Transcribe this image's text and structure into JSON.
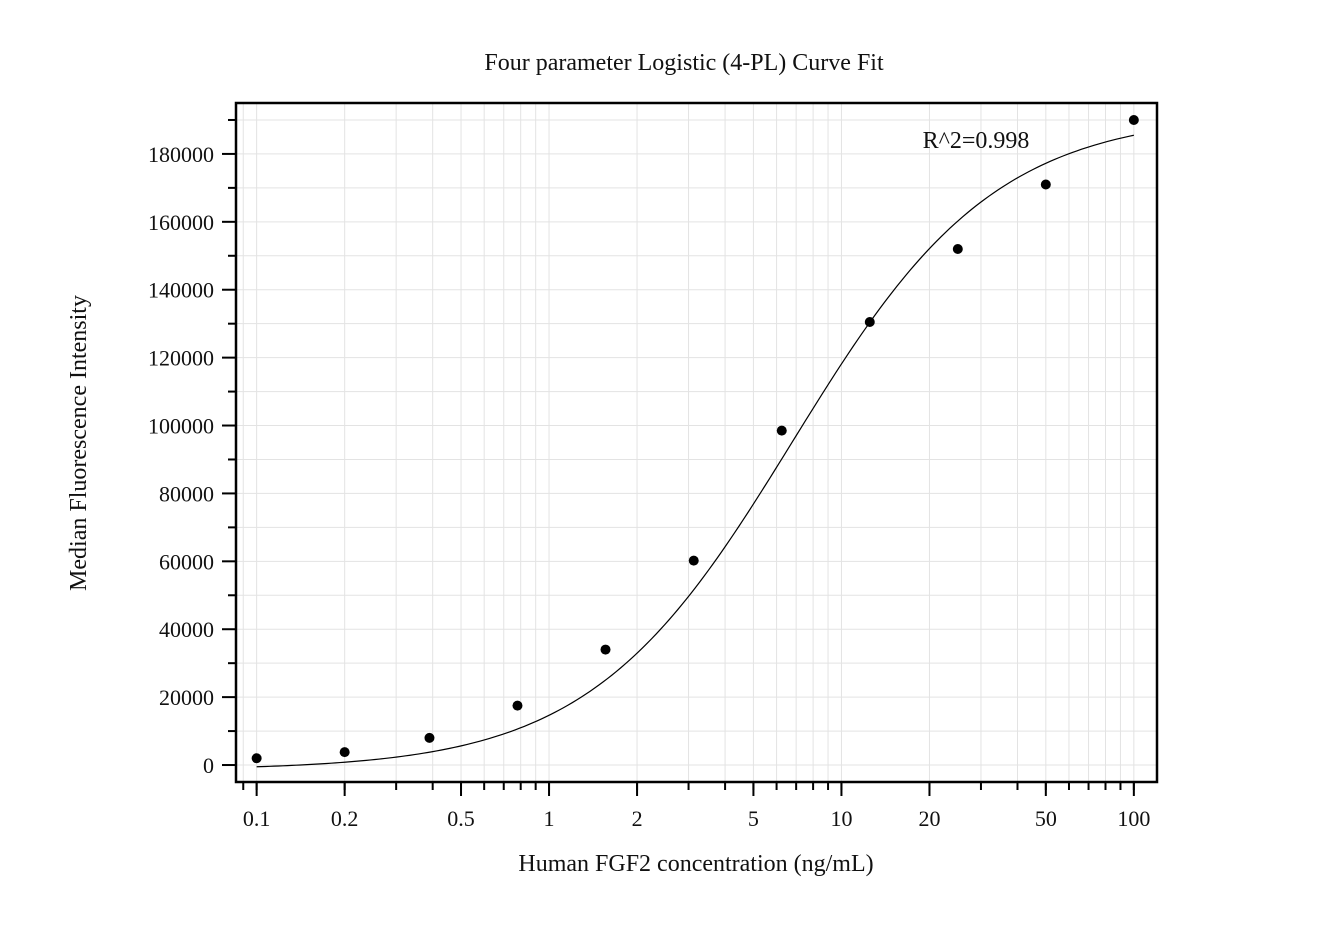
{
  "chart_data": {
    "type": "scatter",
    "title": "Four parameter Logistic (4-PL) Curve Fit",
    "xlabel": "Human FGF2 concentration (ng/mL)",
    "ylabel": "Median Fluorescence Intensity",
    "x_scale": "log",
    "xlim": [
      0.085,
      120
    ],
    "ylim": [
      -5000,
      195000
    ],
    "x_ticks": [
      0.1,
      0.2,
      0.5,
      1,
      2,
      5,
      10,
      20,
      50,
      100
    ],
    "x_tick_labels": [
      "0.1",
      "0.2",
      "0.5",
      "1",
      "2",
      "5",
      "10",
      "20",
      "50",
      "100"
    ],
    "y_ticks": [
      0,
      20000,
      40000,
      60000,
      80000,
      100000,
      120000,
      140000,
      160000,
      180000
    ],
    "y_tick_labels": [
      "0",
      "20000",
      "40000",
      "60000",
      "80000",
      "100000",
      "120000",
      "140000",
      "160000",
      "180000"
    ],
    "grid": true,
    "annotation": "R^2=0.998",
    "points": [
      {
        "x": 0.1,
        "y": 2000
      },
      {
        "x": 0.2,
        "y": 3800
      },
      {
        "x": 0.39,
        "y": 8000
      },
      {
        "x": 0.78,
        "y": 17500
      },
      {
        "x": 1.56,
        "y": 34000
      },
      {
        "x": 3.125,
        "y": 60200
      },
      {
        "x": 6.25,
        "y": 98500
      },
      {
        "x": 12.5,
        "y": 130500
      },
      {
        "x": 25,
        "y": 152000
      },
      {
        "x": 50,
        "y": 171000
      },
      {
        "x": 100,
        "y": 190000
      }
    ],
    "fit_curve": {
      "model": "4PL",
      "bottom": -1500,
      "top": 192000,
      "ec50": 6.8,
      "hill": 1.25
    },
    "colors": {
      "points": "#000000",
      "curve": "#000000",
      "grid": "#e3e3e3",
      "frame": "#000000"
    }
  }
}
